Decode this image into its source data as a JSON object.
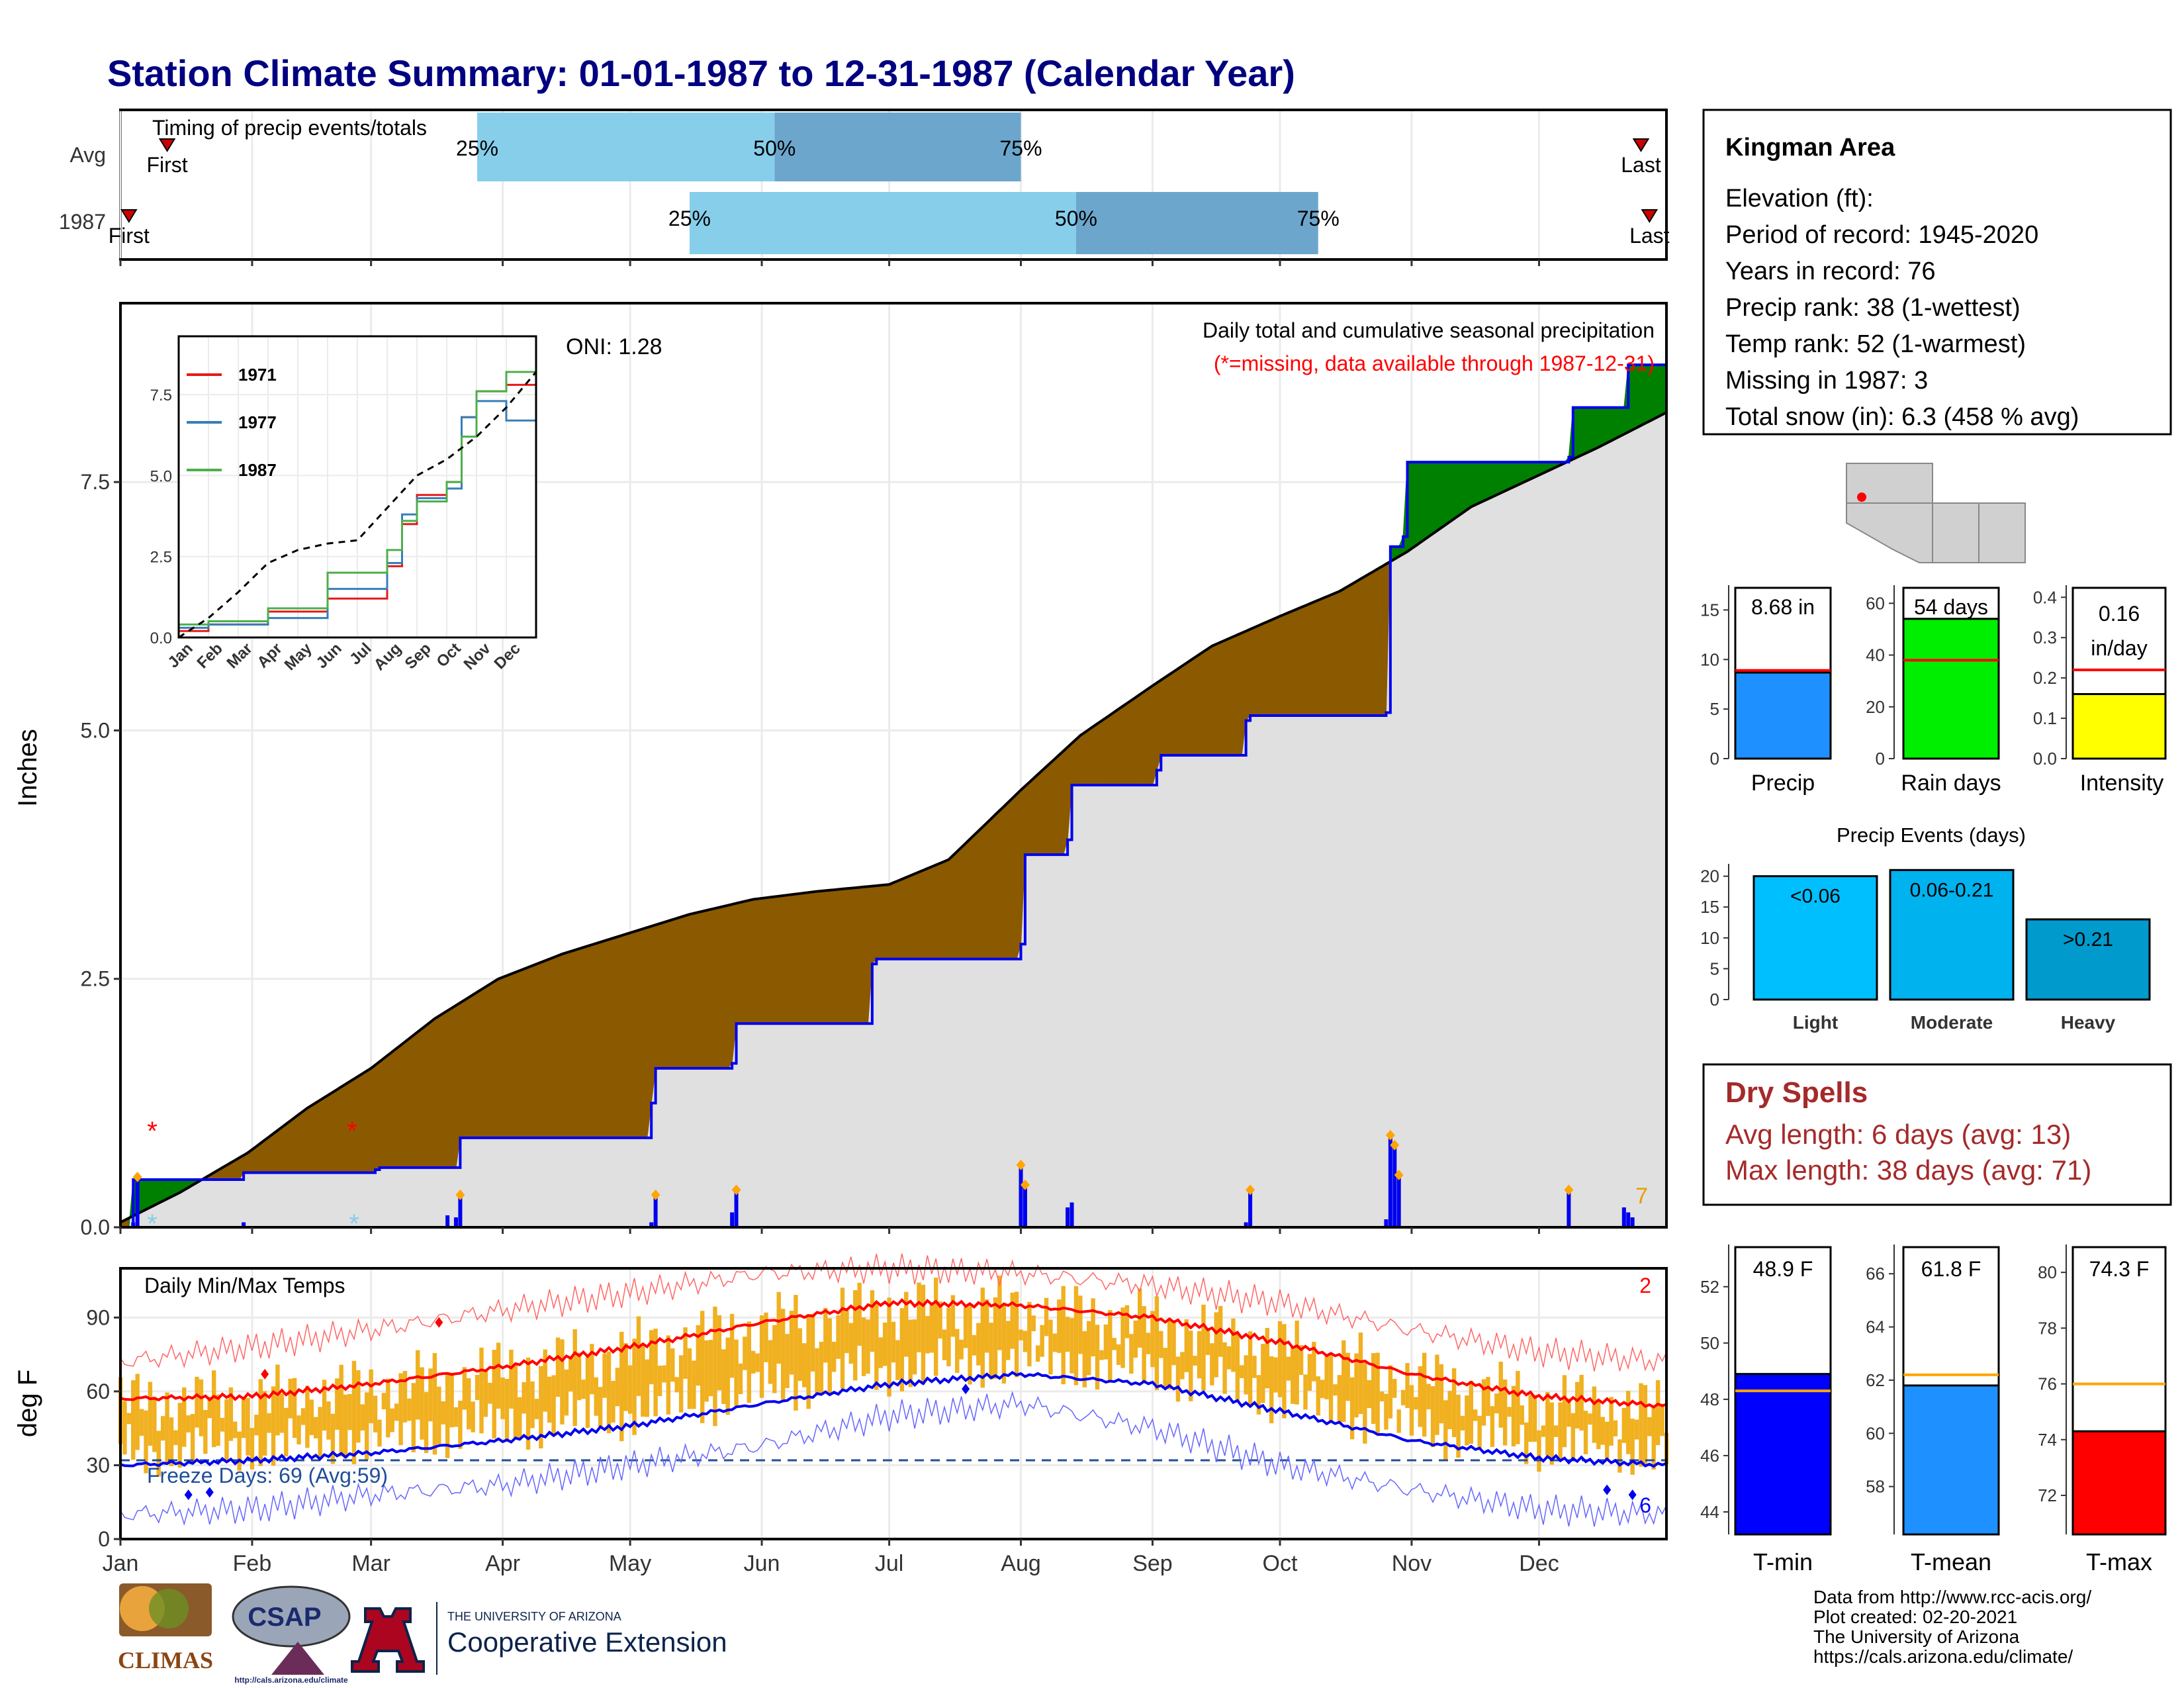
{
  "title": "Station Climate Summary: 01-01-1987 to 12-31-1987 (Calendar Year)",
  "timing_panel": {
    "title": "Timing of precip events/totals",
    "rows": [
      {
        "label": "Avg",
        "first_label": "First",
        "last_label": "Last",
        "first_doy": 12,
        "last_doy": 359,
        "p25": 85,
        "p50": 155,
        "p75": 213,
        "p25_label": "25%",
        "p50_label": "50%",
        "p75_label": "75%"
      },
      {
        "label": "1987",
        "first_label": "First",
        "last_label": "Last",
        "first_doy": 3,
        "last_doy": 361,
        "p25": 135,
        "p50": 226,
        "p75": 283,
        "p25_label": "25%",
        "p50_label": "50%",
        "p75_label": "75%"
      }
    ]
  },
  "precip_panel": {
    "y_axis_label": "Inches",
    "subtitle": "Daily total and cumulative seasonal precipitation",
    "missing_note": "(*=missing, data available through 1987-12-31)",
    "oni_label": "ONI: 1.28",
    "count_label": "7",
    "y_ticks": [
      "0.0",
      "2.5",
      "5.0",
      "7.5"
    ],
    "colors": {
      "above": "#008000",
      "below": "#8B5A00",
      "avg_fill": "#E0E0E0",
      "obs_line": "#0000EE"
    }
  },
  "inset": {
    "legend": [
      {
        "name": "1971",
        "color": "#E41A1C"
      },
      {
        "name": "1977",
        "color": "#377EB8"
      },
      {
        "name": "1987",
        "color": "#4DAF4A"
      }
    ],
    "y_ticks": [
      "0.0",
      "2.5",
      "5.0",
      "7.5"
    ],
    "x_ticks": [
      "Jan",
      "Feb",
      "Mar",
      "Apr",
      "May",
      "Jun",
      "Jul",
      "Aug",
      "Sep",
      "Oct",
      "Nov",
      "Dec"
    ]
  },
  "temp_panel": {
    "y_axis_label": "deg F",
    "title": "Daily Min/Max Temps",
    "freeze_label": "Freeze Days: 69 (Avg:59)",
    "count_max": "2",
    "count_min": "6",
    "y_ticks": [
      "0",
      "30",
      "60",
      "90"
    ],
    "x_ticks": [
      "Jan",
      "Feb",
      "Mar",
      "Apr",
      "May",
      "Jun",
      "Jul",
      "Aug",
      "Sep",
      "Oct",
      "Nov",
      "Dec"
    ]
  },
  "station_box": {
    "name": "Kingman Area",
    "lines": [
      "Elevation (ft):",
      "Period of record: 1945-2020",
      "Years in record: 76",
      "Precip rank: 38 (1-wettest)",
      "Temp rank: 52 (1-warmest)",
      "Missing in 1987: 3",
      "Total snow (in): 6.3 (458 % avg)"
    ]
  },
  "bar_precip": {
    "label": "Precip",
    "value_label": "8.68 in",
    "value": 8.68,
    "avg": 8.9,
    "ymax": 17.5,
    "ticks": [
      "0",
      "5",
      "10",
      "15"
    ],
    "tick_vals": [
      0,
      5,
      10,
      15
    ],
    "color": "#1E90FF"
  },
  "bar_raindays": {
    "label": "Rain days",
    "value_label": "54 days",
    "value": 54,
    "avg": 38,
    "ymax": 67,
    "ticks": [
      "0",
      "20",
      "40",
      "60"
    ],
    "tick_vals": [
      0,
      20,
      40,
      60
    ],
    "color": "#00EE00"
  },
  "bar_intensity": {
    "label": "Intensity",
    "value_label_1": "0.16",
    "value_label_2": "in/day",
    "value": 0.16,
    "avg": 0.22,
    "ymax": 0.43,
    "ticks": [
      "0.0",
      "0.1",
      "0.2",
      "0.3",
      "0.4"
    ],
    "tick_vals": [
      0,
      0.1,
      0.2,
      0.3,
      0.4
    ],
    "color": "#FFFF00"
  },
  "events": {
    "title": "Precip Events (days)",
    "categories": [
      "Light",
      "Moderate",
      "Heavy"
    ],
    "value_labels": [
      "<0.06",
      "0.06-0.21",
      ">0.21"
    ],
    "values": [
      20,
      21,
      13
    ],
    "colors": [
      "#00BFFF",
      "#00B2EE",
      "#009ACD"
    ],
    "ticks": [
      "0",
      "5",
      "10",
      "15",
      "20"
    ]
  },
  "dry_spells": {
    "title": "Dry Spells",
    "line1": "Avg length: 6 days (avg: 13)",
    "line2": "Max length: 38 days (avg: 71)",
    "color": "#A52A2A"
  },
  "temp_bars": [
    {
      "label": "T-min",
      "value_label": "48.9 F",
      "value": 48.9,
      "avg": 48.3,
      "ymin": 43.2,
      "ymax": 53.5,
      "ticks": [
        "44",
        "46",
        "48",
        "50",
        "52"
      ],
      "tick_vals": [
        44,
        46,
        48,
        50,
        52
      ],
      "color": "#0000FF"
    },
    {
      "label": "T-mean",
      "value_label": "61.8 F",
      "value": 61.8,
      "avg": 62.2,
      "ymin": 56.2,
      "ymax": 67.1,
      "ticks": [
        "58",
        "60",
        "62",
        "64",
        "66"
      ],
      "tick_vals": [
        58,
        60,
        62,
        64,
        66
      ],
      "color": "#1E90FF"
    },
    {
      "label": "T-max",
      "value_label": "74.3 F",
      "value": 74.3,
      "avg": 76.0,
      "ymin": 70.6,
      "ymax": 81.0,
      "ticks": [
        "72",
        "74",
        "76",
        "78",
        "80"
      ],
      "tick_vals": [
        72,
        74,
        76,
        78,
        80
      ],
      "color": "#FF0000"
    }
  ],
  "footer": {
    "lines": [
      "Data from http://www.rcc-acis.org/",
      "Plot created: 02-20-2021",
      "The University of Arizona",
      "https://cals.arizona.edu/climate/"
    ],
    "logo_climas": "CLIMAS",
    "logo_csap": "CSAP",
    "logo_csap_url": "http://cals.arizona.edu/climate",
    "ua_line1": "THE UNIVERSITY OF ARIZONA",
    "ua_line2": "Cooperative Extension"
  },
  "chart_data": [
    {
      "type": "bar",
      "title": "Timing of precip events/totals",
      "categories": [
        "Avg",
        "1987"
      ],
      "series": [
        {
          "name": "25%",
          "values": [
            85,
            135
          ]
        },
        {
          "name": "50%",
          "values": [
            155,
            226
          ]
        },
        {
          "name": "75%",
          "values": [
            213,
            283
          ]
        }
      ]
    },
    {
      "type": "area",
      "title": "Daily total and cumulative seasonal precipitation",
      "ylabel": "Inches",
      "ylim": [
        0,
        9.3
      ],
      "x_units": "day of year 1987",
      "series": [
        {
          "name": "cumulative average",
          "x": [
            1,
            15,
            31,
            45,
            60,
            75,
            90,
            105,
            120,
            135,
            150,
            165,
            182,
            196,
            213,
            227,
            244,
            258,
            274,
            288,
            304,
            319,
            334,
            349,
            365
          ],
          "values": [
            0.05,
            0.35,
            0.75,
            1.2,
            1.6,
            2.1,
            2.5,
            2.75,
            2.95,
            3.15,
            3.3,
            3.38,
            3.45,
            3.7,
            4.4,
            4.95,
            5.45,
            5.85,
            6.15,
            6.4,
            6.8,
            7.25,
            7.55,
            7.85,
            8.2
          ]
        },
        {
          "name": "cumulative 1987",
          "x": [
            3,
            4,
            8,
            30,
            61,
            62,
            80,
            81,
            126,
            127,
            145,
            146,
            178,
            179,
            213,
            214,
            224,
            225,
            245,
            246,
            266,
            267,
            299,
            300,
            303,
            304,
            342,
            343,
            355,
            356,
            365
          ],
          "values": [
            0.0,
            0.48,
            0.48,
            0.55,
            0.58,
            0.6,
            0.6,
            0.9,
            1.25,
            1.6,
            1.65,
            2.05,
            2.65,
            2.7,
            2.85,
            3.75,
            3.9,
            4.45,
            4.6,
            4.75,
            5.1,
            5.15,
            5.18,
            6.85,
            6.95,
            7.7,
            7.75,
            8.25,
            8.25,
            8.68,
            8.68
          ]
        },
        {
          "name": "daily precip",
          "x": [
            4,
            5,
            30,
            78,
            80,
            81,
            126,
            127,
            145,
            146,
            213,
            214,
            224,
            225,
            266,
            267,
            299,
            300,
            301,
            302,
            342,
            355,
            356,
            357
          ],
          "values": [
            0.05,
            0.48,
            0.05,
            0.12,
            0.1,
            0.3,
            0.05,
            0.3,
            0.15,
            0.35,
            0.6,
            0.4,
            0.2,
            0.25,
            0.05,
            0.35,
            0.08,
            0.9,
            0.8,
            0.5,
            0.35,
            0.2,
            0.15,
            0.1
          ]
        }
      ]
    },
    {
      "type": "line",
      "title": "",
      "x_units": "month index",
      "series": [
        {
          "name": "1971",
          "x": [
            0,
            1,
            3,
            5,
            7,
            7.5,
            8,
            9,
            9.5,
            10,
            11,
            12
          ],
          "values": [
            0.2,
            0.4,
            0.8,
            1.2,
            2.2,
            3.5,
            4.4,
            4.8,
            6.8,
            7.6,
            7.8,
            9.3
          ]
        },
        {
          "name": "1977",
          "x": [
            0,
            1,
            3,
            5,
            7,
            7.5,
            8,
            9,
            9.5,
            10,
            11,
            12
          ],
          "values": [
            0.3,
            0.4,
            0.6,
            1.5,
            2.3,
            3.8,
            4.3,
            4.6,
            6.8,
            7.3,
            6.7,
            8.5
          ]
        },
        {
          "name": "1987",
          "x": [
            0,
            1,
            3,
            5,
            7,
            7.5,
            8,
            9,
            9.5,
            10,
            11,
            12
          ],
          "values": [
            0.4,
            0.5,
            0.9,
            2.0,
            2.7,
            3.6,
            4.2,
            4.8,
            6.2,
            7.6,
            8.2,
            8.7
          ]
        },
        {
          "name": "average",
          "x": [
            0,
            1,
            2,
            3,
            4,
            5,
            6,
            7,
            8,
            9,
            10,
            11,
            12
          ],
          "values": [
            0.0,
            0.6,
            1.4,
            2.3,
            2.7,
            2.9,
            3.0,
            4.0,
            5.0,
            5.5,
            6.2,
            7.1,
            8.2
          ]
        }
      ]
    },
    {
      "type": "line",
      "title": "Daily Min/Max Temps",
      "ylabel": "deg F",
      "ylim": [
        0,
        110
      ],
      "x_units": "day of year 1987",
      "series": [
        {
          "name": "avg max",
          "x": [
            1,
            32,
            60,
            91,
            121,
            152,
            182,
            213,
            244,
            274,
            305,
            335,
            365
          ],
          "values": [
            57,
            58,
            63,
            70,
            78,
            88,
            96,
            95,
            90,
            80,
            67,
            58,
            54
          ]
        },
        {
          "name": "avg min",
          "x": [
            1,
            32,
            60,
            91,
            121,
            152,
            182,
            213,
            244,
            274,
            305,
            335,
            365
          ],
          "values": [
            30,
            32,
            35,
            40,
            46,
            55,
            63,
            67,
            63,
            52,
            40,
            33,
            30
          ]
        },
        {
          "name": "record max",
          "x": [
            1,
            32,
            60,
            91,
            121,
            152,
            182,
            213,
            244,
            274,
            305,
            335,
            365
          ],
          "values": [
            72,
            78,
            85,
            93,
            100,
            108,
            110,
            108,
            103,
            96,
            85,
            76,
            72
          ]
        },
        {
          "name": "record min",
          "x": [
            1,
            32,
            60,
            91,
            121,
            152,
            182,
            213,
            244,
            274,
            305,
            335,
            365
          ],
          "values": [
            10,
            12,
            18,
            22,
            30,
            38,
            50,
            55,
            45,
            30,
            20,
            12,
            10
          ]
        },
        {
          "name": "freeze line",
          "x": [
            1,
            365
          ],
          "values": [
            32,
            32
          ]
        }
      ]
    },
    {
      "type": "bar",
      "title": "Precip Events (days)",
      "categories": [
        "Light",
        "Moderate",
        "Heavy"
      ],
      "values": [
        20,
        21,
        13
      ]
    },
    {
      "type": "bar",
      "categories": [
        "Precip",
        "Rain days",
        "Intensity",
        "T-min",
        "T-mean",
        "T-max"
      ],
      "values": [
        8.68,
        54,
        0.16,
        48.9,
        61.8,
        74.3
      ]
    }
  ]
}
